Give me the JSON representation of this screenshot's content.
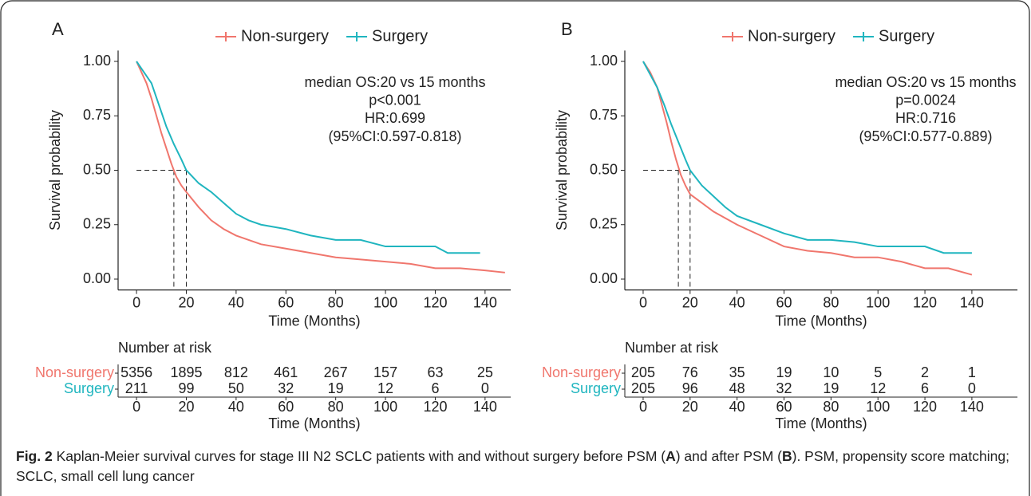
{
  "chart_data": [
    {
      "type": "line",
      "panel_label": "A",
      "xlabel": "Time (Months)",
      "ylabel": "Survival probability",
      "xlim": [
        -7.4,
        150.3
      ],
      "ylim": [
        -0.05,
        1.05
      ],
      "xticks": [
        0,
        20,
        40,
        60,
        80,
        100,
        120,
        140
      ],
      "yticks": [
        {
          "value": 0,
          "label": "0.00"
        },
        {
          "value": 0.25,
          "label": "0.25"
        },
        {
          "value": 0.5,
          "label": "0.50"
        },
        {
          "value": 0.75,
          "label": "0.75"
        },
        {
          "value": 1,
          "label": "1.00"
        }
      ],
      "annotations": [
        "median OS:20 vs 15 months",
        "p<0.001",
        "HR:0.699",
        "(95%CI:0.597-0.818)"
      ],
      "median_y": 0.5,
      "median_x": [
        15,
        20
      ],
      "series": [
        {
          "name": "Non-surgery",
          "color": "#f0766d",
          "x": [
            0,
            2,
            4,
            6,
            8,
            10,
            12,
            14,
            16,
            18,
            20,
            25,
            30,
            35,
            40,
            50,
            60,
            70,
            80,
            90,
            100,
            110,
            120,
            130,
            140,
            148
          ],
          "values": [
            1,
            0.95,
            0.9,
            0.83,
            0.75,
            0.67,
            0.6,
            0.53,
            0.47,
            0.43,
            0.4,
            0.33,
            0.27,
            0.23,
            0.2,
            0.16,
            0.14,
            0.12,
            0.1,
            0.09,
            0.08,
            0.07,
            0.05,
            0.05,
            0.04,
            0.03
          ]
        },
        {
          "name": "Surgery",
          "color": "#1fb5bf",
          "x": [
            0,
            3,
            6,
            9,
            12,
            15,
            18,
            20,
            25,
            30,
            35,
            40,
            45,
            50,
            55,
            60,
            70,
            80,
            90,
            100,
            110,
            120,
            125,
            130,
            138
          ],
          "values": [
            1,
            0.95,
            0.9,
            0.8,
            0.7,
            0.62,
            0.55,
            0.5,
            0.44,
            0.4,
            0.35,
            0.3,
            0.27,
            0.25,
            0.24,
            0.23,
            0.2,
            0.18,
            0.18,
            0.15,
            0.15,
            0.15,
            0.12,
            0.12,
            0.12
          ]
        }
      ],
      "risk_table": {
        "title": "Number at risk",
        "xlabel": "Time (Months)",
        "xticks": [
          0,
          20,
          40,
          60,
          80,
          100,
          120,
          140
        ],
        "rows": [
          {
            "name": "Non-surgery",
            "color": "#f0766d",
            "values": [
              5356,
              1895,
              812,
              461,
              267,
              157,
              63,
              25
            ]
          },
          {
            "name": "Surgery",
            "color": "#1fb5bf",
            "values": [
              211,
              99,
              50,
              32,
              19,
              12,
              6,
              0
            ]
          }
        ]
      }
    },
    {
      "type": "line",
      "panel_label": "B",
      "xlabel": "Time (Months)",
      "ylabel": "Survival probability",
      "xlim": [
        -7.8,
        159.4
      ],
      "ylim": [
        -0.05,
        1.05
      ],
      "xticks": [
        0,
        20,
        40,
        60,
        80,
        100,
        120,
        140
      ],
      "yticks": [
        {
          "value": 0,
          "label": "0.00"
        },
        {
          "value": 0.25,
          "label": "0.25"
        },
        {
          "value": 0.5,
          "label": "0.50"
        },
        {
          "value": 0.75,
          "label": "0.75"
        },
        {
          "value": 1,
          "label": "1.00"
        }
      ],
      "annotations": [
        "median OS:20 vs 15 months",
        "p=0.0024",
        "HR:0.716",
        "(95%CI:0.577-0.889)"
      ],
      "median_y": 0.5,
      "median_x": [
        15,
        20
      ],
      "series": [
        {
          "name": "Non-surgery",
          "color": "#f0766d",
          "x": [
            0,
            3,
            6,
            8,
            10,
            12,
            14,
            16,
            18,
            20,
            25,
            30,
            40,
            50,
            60,
            70,
            80,
            90,
            100,
            110,
            120,
            130,
            140
          ],
          "values": [
            1,
            0.95,
            0.88,
            0.8,
            0.72,
            0.63,
            0.55,
            0.48,
            0.43,
            0.39,
            0.35,
            0.31,
            0.25,
            0.2,
            0.15,
            0.13,
            0.12,
            0.1,
            0.1,
            0.08,
            0.05,
            0.05,
            0.02
          ]
        },
        {
          "name": "Surgery",
          "color": "#1fb5bf",
          "x": [
            0,
            3,
            6,
            9,
            12,
            15,
            18,
            20,
            25,
            30,
            35,
            40,
            50,
            60,
            70,
            80,
            90,
            100,
            110,
            120,
            128,
            140
          ],
          "values": [
            1,
            0.94,
            0.88,
            0.8,
            0.71,
            0.63,
            0.55,
            0.5,
            0.43,
            0.38,
            0.33,
            0.29,
            0.25,
            0.21,
            0.18,
            0.18,
            0.17,
            0.15,
            0.15,
            0.15,
            0.12,
            0.12
          ]
        }
      ],
      "risk_table": {
        "title": "Number at risk",
        "xlabel": "Time (Months)",
        "xticks": [
          0,
          20,
          40,
          60,
          80,
          100,
          120,
          140
        ],
        "rows": [
          {
            "name": "Non-surgery",
            "color": "#f0766d",
            "values": [
              205,
              76,
              35,
              19,
              10,
              5,
              2,
              1
            ]
          },
          {
            "name": "Surgery",
            "color": "#1fb5bf",
            "values": [
              205,
              96,
              48,
              32,
              19,
              12,
              6,
              0
            ]
          }
        ]
      }
    }
  ],
  "caption": [
    "Fig. 2",
    " Kaplan-Meier survival curves for stage III N2 SCLC patients with and without surgery before PSM (",
    "A",
    ") and after PSM (",
    "B",
    "). PSM, propensity score matching; SCLC, small cell lung cancer"
  ]
}
